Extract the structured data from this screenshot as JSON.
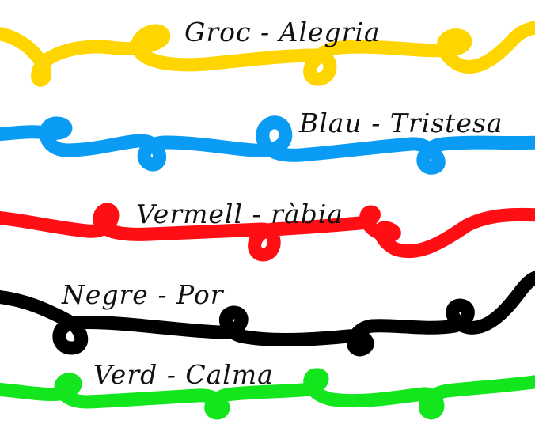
{
  "rows": [
    {
      "key": "yellow",
      "text": "Groc - Alegria",
      "color": "#FFD500"
    },
    {
      "key": "blue",
      "text": "Blau - Tristesa",
      "color": "#0A9BF5"
    },
    {
      "key": "red",
      "text": "Vermell - ràbia",
      "color": "#FF0F14"
    },
    {
      "key": "black",
      "text": "Negre - Por",
      "color": "#000000"
    },
    {
      "key": "green",
      "text": "Verd - Calma",
      "color": "#14E61E"
    }
  ]
}
